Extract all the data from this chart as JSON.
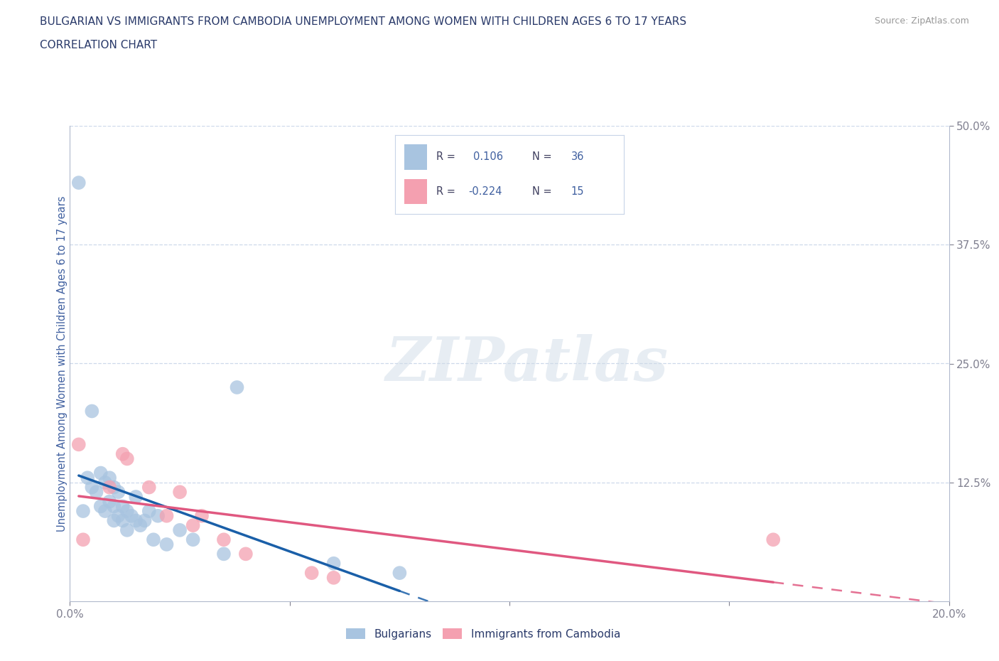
{
  "title_line1": "BULGARIAN VS IMMIGRANTS FROM CAMBODIA UNEMPLOYMENT AMONG WOMEN WITH CHILDREN AGES 6 TO 17 YEARS",
  "title_line2": "CORRELATION CHART",
  "source": "Source: ZipAtlas.com",
  "ylabel": "Unemployment Among Women with Children Ages 6 to 17 years",
  "xlim": [
    0.0,
    0.2
  ],
  "ylim": [
    0.0,
    0.5
  ],
  "watermark": "ZIPatlas",
  "r_bulgarian": 0.106,
  "n_bulgarian": 36,
  "r_cambodia": -0.224,
  "n_cambodia": 15,
  "bulgarian_color": "#a8c4e0",
  "cambodia_color": "#f4a0b0",
  "trend_bulgarian_color": "#1a5fa8",
  "trend_cambodia_color": "#e05880",
  "bulgarian_scatter_x": [
    0.002,
    0.003,
    0.004,
    0.005,
    0.005,
    0.006,
    0.007,
    0.007,
    0.008,
    0.008,
    0.009,
    0.009,
    0.01,
    0.01,
    0.01,
    0.011,
    0.011,
    0.012,
    0.012,
    0.013,
    0.013,
    0.014,
    0.015,
    0.015,
    0.016,
    0.017,
    0.018,
    0.019,
    0.02,
    0.022,
    0.025,
    0.028,
    0.035,
    0.038,
    0.06,
    0.075
  ],
  "bulgarian_scatter_y": [
    0.44,
    0.095,
    0.13,
    0.2,
    0.12,
    0.115,
    0.135,
    0.1,
    0.125,
    0.095,
    0.13,
    0.105,
    0.12,
    0.1,
    0.085,
    0.115,
    0.09,
    0.1,
    0.085,
    0.095,
    0.075,
    0.09,
    0.11,
    0.085,
    0.08,
    0.085,
    0.095,
    0.065,
    0.09,
    0.06,
    0.075,
    0.065,
    0.05,
    0.225,
    0.04,
    0.03
  ],
  "cambodia_scatter_x": [
    0.002,
    0.003,
    0.009,
    0.012,
    0.013,
    0.018,
    0.022,
    0.025,
    0.028,
    0.03,
    0.035,
    0.04,
    0.055,
    0.16,
    0.06
  ],
  "cambodia_scatter_y": [
    0.165,
    0.065,
    0.12,
    0.155,
    0.15,
    0.12,
    0.09,
    0.115,
    0.08,
    0.09,
    0.065,
    0.05,
    0.03,
    0.065,
    0.025
  ],
  "background_color": "#ffffff",
  "grid_color": "#c8d4e8",
  "title_color": "#2a3a6a",
  "axis_color": "#4060a0",
  "legend_border_color": "#c8d4e8"
}
